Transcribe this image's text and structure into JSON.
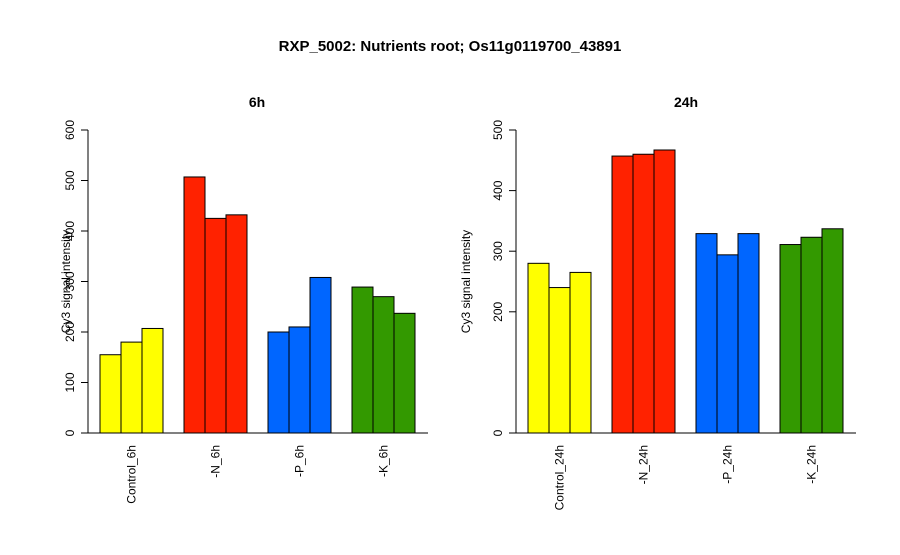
{
  "figure": {
    "title": "RXP_5002: Nutrients root; Os11g0119700_43891"
  },
  "chart_data": [
    {
      "type": "bar",
      "title": "6h",
      "ylabel": "Cy3 signal intensity",
      "xlabel": "",
      "ylim": [
        0,
        600
      ],
      "yticks": [
        0,
        100,
        200,
        300,
        400,
        500,
        600
      ],
      "categories": [
        "Control_6h",
        "-N_6h",
        "-P_6h",
        "-K_6h"
      ],
      "colors": [
        "#ffff00",
        "#ff2200",
        "#0066ff",
        "#339900"
      ],
      "groups": [
        {
          "category": "Control_6h",
          "values": [
            155,
            180,
            207
          ]
        },
        {
          "category": "-N_6h",
          "values": [
            507,
            425,
            432
          ]
        },
        {
          "category": "-P_6h",
          "values": [
            200,
            210,
            308
          ]
        },
        {
          "category": "-K_6h",
          "values": [
            289,
            270,
            237
          ]
        }
      ],
      "grid": false,
      "legend": "none"
    },
    {
      "type": "bar",
      "title": "24h",
      "ylabel": "Cy3 signal intensity",
      "xlabel": "",
      "ylim": [
        0,
        500
      ],
      "yticks": [
        0,
        200,
        300,
        400,
        500
      ],
      "categories": [
        "Control_24h",
        "-N_24h",
        "-P_24h",
        "-K_24h"
      ],
      "colors": [
        "#ffff00",
        "#ff2200",
        "#0066ff",
        "#339900"
      ],
      "groups": [
        {
          "category": "Control_24h",
          "values": [
            280,
            240,
            265
          ]
        },
        {
          "category": "-N_24h",
          "values": [
            457,
            460,
            467
          ]
        },
        {
          "category": "-P_24h",
          "values": [
            329,
            294,
            329
          ]
        },
        {
          "category": "-K_24h",
          "values": [
            311,
            323,
            337
          ]
        }
      ],
      "grid": false,
      "legend": "none"
    }
  ]
}
